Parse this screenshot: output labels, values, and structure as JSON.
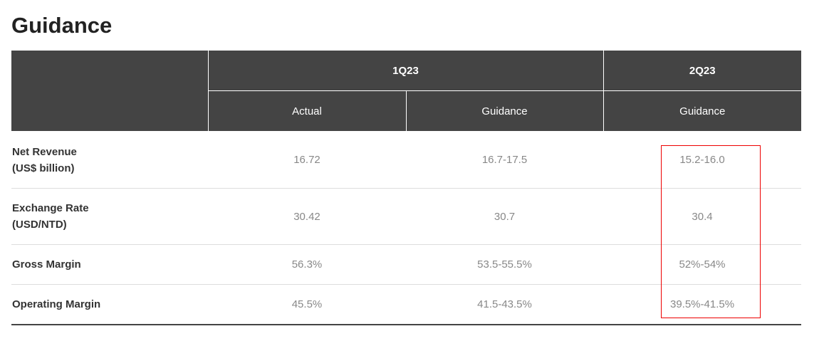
{
  "title": "Guidance",
  "header": {
    "periods": [
      "1Q23",
      "2Q23"
    ],
    "subheaders": [
      "Actual",
      "Guidance",
      "Guidance"
    ]
  },
  "rows": [
    {
      "label": "Net Revenue",
      "unit": "(US$ billion)",
      "values": [
        "16.72",
        "16.7-17.5",
        "15.2-16.0"
      ]
    },
    {
      "label": "Exchange Rate",
      "unit": "(USD/NTD)",
      "values": [
        "30.42",
        "30.7",
        "30.4"
      ]
    },
    {
      "label": "Gross Margin",
      "unit": "",
      "values": [
        "56.3%",
        "53.5-55.5%",
        "52%-54%"
      ]
    },
    {
      "label": "Operating Margin",
      "unit": "",
      "values": [
        "45.5%",
        "41.5-43.5%",
        "39.5%-41.5%"
      ]
    }
  ],
  "highlight_color": "#ee0000"
}
